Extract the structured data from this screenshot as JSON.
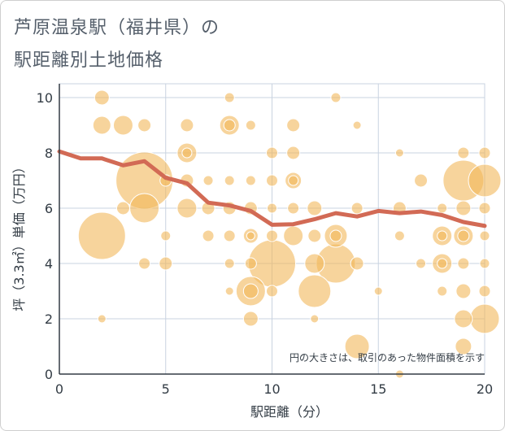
{
  "title_line1": "芦原温泉駅（福井県）の",
  "title_line2": "駅距離別土地価格",
  "chart_data": {
    "type": "scatter",
    "xlabel": "駅距離（分）",
    "ylabel": "坪（3.3㎡）単価（万円）",
    "xlim": [
      0,
      20
    ],
    "ylim": [
      0,
      10.5
    ],
    "xticks": [
      "0",
      "5",
      "10",
      "15",
      "20"
    ],
    "yticks": [
      "0",
      "2",
      "4",
      "6",
      "8",
      "10"
    ],
    "grid": true,
    "note": "円の大きさは、取引のあった物件面積を示す",
    "colors": {
      "bubble": "#f2b85a",
      "line": "#d26a55",
      "grid": "#c9d3e0"
    },
    "bubbles": [
      {
        "x": 2,
        "y": 10,
        "s": 9
      },
      {
        "x": 2,
        "y": 9,
        "s": 11
      },
      {
        "x": 3,
        "y": 9,
        "s": 12
      },
      {
        "x": 4,
        "y": 9,
        "s": 8
      },
      {
        "x": 6,
        "y": 9,
        "s": 8
      },
      {
        "x": 8,
        "y": 10,
        "s": 6
      },
      {
        "x": 8,
        "y": 9,
        "s": 12
      },
      {
        "x": 8,
        "y": 9,
        "s": 7
      },
      {
        "x": 9,
        "y": 9,
        "s": 6
      },
      {
        "x": 11,
        "y": 9,
        "s": 8
      },
      {
        "x": 13,
        "y": 10,
        "s": 6
      },
      {
        "x": 14,
        "y": 9,
        "s": 5
      },
      {
        "x": 4,
        "y": 7,
        "s": 35
      },
      {
        "x": 4,
        "y": 6,
        "s": 18
      },
      {
        "x": 3,
        "y": 6,
        "s": 8
      },
      {
        "x": 2,
        "y": 5,
        "s": 29
      },
      {
        "x": 2,
        "y": 2,
        "s": 5
      },
      {
        "x": 4,
        "y": 4,
        "s": 7
      },
      {
        "x": 5,
        "y": 4,
        "s": 8
      },
      {
        "x": 5,
        "y": 5,
        "s": 6
      },
      {
        "x": 5,
        "y": 7,
        "s": 7
      },
      {
        "x": 6,
        "y": 8,
        "s": 12
      },
      {
        "x": 6,
        "y": 8,
        "s": 6
      },
      {
        "x": 6,
        "y": 7,
        "s": 8
      },
      {
        "x": 6,
        "y": 6,
        "s": 12
      },
      {
        "x": 7,
        "y": 7,
        "s": 6
      },
      {
        "x": 7,
        "y": 6,
        "s": 8
      },
      {
        "x": 7,
        "y": 5,
        "s": 7
      },
      {
        "x": 8,
        "y": 7,
        "s": 6
      },
      {
        "x": 8,
        "y": 6,
        "s": 8
      },
      {
        "x": 8,
        "y": 5,
        "s": 7
      },
      {
        "x": 8,
        "y": 4,
        "s": 6
      },
      {
        "x": 8,
        "y": 3,
        "s": 5
      },
      {
        "x": 9,
        "y": 7,
        "s": 6
      },
      {
        "x": 9,
        "y": 6,
        "s": 8
      },
      {
        "x": 9,
        "y": 5,
        "s": 9
      },
      {
        "x": 9,
        "y": 5,
        "s": 5
      },
      {
        "x": 9,
        "y": 4,
        "s": 7
      },
      {
        "x": 9,
        "y": 3,
        "s": 18
      },
      {
        "x": 9,
        "y": 3,
        "s": 9
      },
      {
        "x": 9,
        "y": 2,
        "s": 9
      },
      {
        "x": 10,
        "y": 8,
        "s": 7
      },
      {
        "x": 10,
        "y": 7,
        "s": 7
      },
      {
        "x": 10,
        "y": 6,
        "s": 6
      },
      {
        "x": 10,
        "y": 5,
        "s": 7
      },
      {
        "x": 10,
        "y": 4,
        "s": 29
      },
      {
        "x": 10,
        "y": 3,
        "s": 7
      },
      {
        "x": 11,
        "y": 8,
        "s": 8
      },
      {
        "x": 11,
        "y": 7,
        "s": 10
      },
      {
        "x": 11,
        "y": 7,
        "s": 6
      },
      {
        "x": 11,
        "y": 6,
        "s": 7
      },
      {
        "x": 11,
        "y": 5,
        "s": 12
      },
      {
        "x": 12,
        "y": 6,
        "s": 9
      },
      {
        "x": 12,
        "y": 5,
        "s": 8
      },
      {
        "x": 12,
        "y": 4,
        "s": 12
      },
      {
        "x": 12,
        "y": 3,
        "s": 20
      },
      {
        "x": 12,
        "y": 2,
        "s": 5
      },
      {
        "x": 13,
        "y": 5,
        "s": 14
      },
      {
        "x": 13,
        "y": 5,
        "s": 7
      },
      {
        "x": 13,
        "y": 4,
        "s": 24
      },
      {
        "x": 14,
        "y": 6,
        "s": 7
      },
      {
        "x": 14,
        "y": 4,
        "s": 8
      },
      {
        "x": 14,
        "y": 1,
        "s": 15
      },
      {
        "x": 15,
        "y": 3,
        "s": 5
      },
      {
        "x": 16,
        "y": 8,
        "s": 5
      },
      {
        "x": 16,
        "y": 6,
        "s": 8
      },
      {
        "x": 16,
        "y": 5,
        "s": 6
      },
      {
        "x": 16,
        "y": 0,
        "s": 5
      },
      {
        "x": 17,
        "y": 7,
        "s": 8
      },
      {
        "x": 17,
        "y": 4,
        "s": 6
      },
      {
        "x": 18,
        "y": 6,
        "s": 6
      },
      {
        "x": 18,
        "y": 5,
        "s": 12
      },
      {
        "x": 18,
        "y": 5,
        "s": 6
      },
      {
        "x": 18,
        "y": 4,
        "s": 12
      },
      {
        "x": 18,
        "y": 4,
        "s": 6
      },
      {
        "x": 18,
        "y": 3,
        "s": 6
      },
      {
        "x": 19,
        "y": 8,
        "s": 7
      },
      {
        "x": 19,
        "y": 7,
        "s": 25
      },
      {
        "x": 19,
        "y": 6,
        "s": 9
      },
      {
        "x": 19,
        "y": 5,
        "s": 12
      },
      {
        "x": 19,
        "y": 5,
        "s": 7
      },
      {
        "x": 19,
        "y": 4,
        "s": 7
      },
      {
        "x": 19,
        "y": 3,
        "s": 9
      },
      {
        "x": 19,
        "y": 2,
        "s": 11
      },
      {
        "x": 19,
        "y": 1,
        "s": 10
      },
      {
        "x": 20,
        "y": 8,
        "s": 7
      },
      {
        "x": 20,
        "y": 7,
        "s": 20
      },
      {
        "x": 20,
        "y": 6,
        "s": 7
      },
      {
        "x": 20,
        "y": 5,
        "s": 6
      },
      {
        "x": 20,
        "y": 4,
        "s": 6
      },
      {
        "x": 20,
        "y": 3,
        "s": 7
      },
      {
        "x": 20,
        "y": 2,
        "s": 18
      }
    ],
    "line": {
      "x": [
        0,
        1,
        2,
        3,
        4,
        5,
        6,
        7,
        8,
        9,
        10,
        11,
        12,
        13,
        14,
        15,
        16,
        17,
        18,
        19,
        20
      ],
      "y": [
        8.05,
        7.8,
        7.8,
        7.55,
        7.7,
        7.1,
        6.9,
        6.2,
        6.1,
        5.9,
        5.4,
        5.42,
        5.6,
        5.82,
        5.7,
        5.9,
        5.82,
        5.88,
        5.75,
        5.5,
        5.36
      ]
    }
  }
}
